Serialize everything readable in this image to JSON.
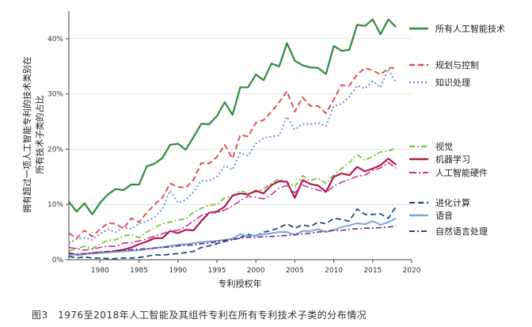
{
  "caption": "图3　1976至2018年人工智能及其组件专利在所有专利技术子类的分布情况",
  "chart_data": {
    "type": "line",
    "title": "",
    "xlabel": "专利授权年",
    "ylabel_lines": [
      "拥有超过一项人工智能专利的技术类别在",
      "所有技术子类的占比"
    ],
    "xlim": [
      1976,
      2020
    ],
    "ylim": [
      0,
      45
    ],
    "x_ticks": [
      1980,
      1985,
      1990,
      1995,
      2000,
      2005,
      2010,
      2015,
      2020
    ],
    "x_tick_labels": [
      "1980",
      "1985",
      "1990",
      "1995",
      "2000",
      "2005",
      "2010",
      "2015",
      "2020"
    ],
    "y_ticks": [
      0,
      10,
      20,
      30,
      40
    ],
    "y_tick_labels": [
      "0%",
      "10%",
      "20%",
      "30%",
      "40%"
    ],
    "legend_position": "right",
    "x": [
      1976,
      1977,
      1978,
      1979,
      1980,
      1981,
      1982,
      1983,
      1984,
      1985,
      1986,
      1987,
      1988,
      1989,
      1990,
      1991,
      1992,
      1993,
      1994,
      1995,
      1996,
      1997,
      1998,
      1999,
      2000,
      2001,
      2002,
      2003,
      2004,
      2005,
      2006,
      2007,
      2008,
      2009,
      2010,
      2011,
      2012,
      2013,
      2014,
      2015,
      2016,
      2017,
      2018
    ],
    "series": [
      {
        "name": "所有人工智能技术",
        "color": "#2e8b3e",
        "dash": "solid",
        "width": 2.2,
        "values": [
          10.5,
          8.7,
          10.2,
          8.2,
          10.3,
          11.8,
          12.8,
          12.6,
          13.6,
          13.6,
          16.9,
          17.4,
          18.4,
          20.8,
          21.0,
          19.9,
          22.2,
          24.6,
          24.5,
          26.0,
          28.5,
          26.2,
          31.2,
          31.2,
          33.5,
          32.5,
          35.5,
          35.0,
          39.2,
          36.0,
          35.2,
          34.8,
          34.7,
          33.6,
          38.7,
          37.8,
          38.0,
          42.5,
          42.3,
          43.5,
          40.8,
          43.5,
          42.1
        ]
      },
      {
        "name": "规划与控制",
        "color": "#e05050",
        "dash": "7,4",
        "width": 2.0,
        "values": [
          4.8,
          3.9,
          5.3,
          4.2,
          5.5,
          6.6,
          6.5,
          5.6,
          7.5,
          6.8,
          8.5,
          10.0,
          11.2,
          13.8,
          13.2,
          13.0,
          14.5,
          17.5,
          17.4,
          18.6,
          20.8,
          18.3,
          22.6,
          22.3,
          24.8,
          25.3,
          26.8,
          28.5,
          30.5,
          26.8,
          29.4,
          27.8,
          27.8,
          26.5,
          29.0,
          31.6,
          31.5,
          33.5,
          34.7,
          34.3,
          33.5,
          34.7,
          34.7
        ]
      },
      {
        "name": "知识处理",
        "color": "#6a8fd6",
        "dash": "2,3",
        "width": 2.0,
        "values": [
          3.0,
          3.8,
          4.0,
          3.6,
          4.7,
          5.5,
          5.0,
          5.8,
          5.6,
          6.5,
          7.0,
          7.7,
          9.2,
          12.5,
          10.3,
          10.8,
          12.3,
          14.3,
          14.3,
          15.0,
          17.0,
          16.3,
          19.3,
          18.8,
          21.0,
          22.0,
          22.3,
          22.5,
          25.9,
          23.5,
          24.6,
          24.5,
          24.8,
          24.2,
          27.8,
          28.2,
          29.5,
          31.5,
          31.0,
          32.3,
          31.2,
          34.5,
          32.0
        ]
      },
      {
        "name": "视觉",
        "color": "#7ac23a",
        "dash": "7,3,2,3",
        "width": 1.8,
        "values": [
          1.5,
          2.0,
          2.4,
          2.0,
          2.8,
          3.5,
          3.6,
          4.2,
          4.6,
          4.0,
          5.0,
          5.8,
          6.5,
          6.8,
          7.2,
          7.4,
          8.6,
          9.3,
          9.9,
          10.0,
          11.2,
          11.5,
          12.5,
          12.0,
          12.3,
          12.8,
          13.8,
          14.6,
          14.0,
          13.2,
          15.2,
          14.3,
          14.8,
          13.8,
          15.3,
          16.5,
          17.6,
          19.0,
          18.0,
          18.7,
          19.5,
          19.7,
          20.2
        ]
      },
      {
        "name": "机器学习",
        "color": "#b5174a",
        "dash": "solid",
        "width": 2.2,
        "values": [
          1.0,
          0.9,
          1.0,
          1.2,
          1.3,
          1.3,
          1.6,
          1.8,
          2.2,
          2.8,
          3.3,
          3.9,
          3.9,
          5.2,
          4.8,
          5.4,
          5.3,
          7.0,
          8.5,
          8.7,
          9.6,
          11.6,
          12.0,
          11.8,
          12.5,
          12.0,
          13.5,
          14.2,
          14.1,
          11.2,
          14.4,
          13.7,
          13.4,
          12.3,
          15.0,
          15.6,
          15.3,
          16.8,
          16.0,
          16.5,
          17.1,
          18.3,
          17.2
        ]
      },
      {
        "name": "人工智能硬件",
        "color": "#c0389a",
        "dash": "9,3,2,3",
        "width": 1.6,
        "values": [
          2.2,
          2.0,
          1.7,
          1.9,
          2.2,
          2.5,
          2.4,
          3.0,
          3.1,
          3.4,
          3.8,
          4.3,
          4.7,
          5.2,
          5.3,
          6.0,
          7.0,
          8.0,
          8.5,
          8.5,
          9.0,
          9.7,
          10.7,
          11.5,
          11.3,
          11.0,
          11.8,
          13.0,
          13.4,
          12.1,
          13.5,
          13.0,
          12.6,
          12.2,
          13.3,
          14.0,
          14.5,
          15.1,
          15.3,
          16.2,
          16.6,
          17.6,
          16.6
        ]
      },
      {
        "name": "进化计算",
        "color": "#1f4e79",
        "dash": "7,4",
        "width": 1.8,
        "values": [
          0.6,
          0.3,
          0.5,
          0.3,
          0.3,
          0.2,
          0.2,
          0.3,
          0.3,
          0.4,
          0.6,
          0.9,
          0.8,
          1.0,
          1.1,
          1.3,
          1.5,
          2.2,
          2.5,
          2.9,
          3.3,
          3.7,
          4.0,
          4.6,
          4.2,
          5.0,
          5.3,
          5.8,
          6.5,
          5.7,
          6.3,
          6.0,
          6.8,
          6.5,
          7.5,
          7.3,
          7.0,
          9.2,
          8.2,
          8.2,
          8.3,
          7.5,
          9.6
        ]
      },
      {
        "name": "语音",
        "color": "#7aa7d6",
        "dash": "solid",
        "width": 2.0,
        "values": [
          0.8,
          1.0,
          1.0,
          1.1,
          1.2,
          1.3,
          1.4,
          1.5,
          1.6,
          1.7,
          1.9,
          2.1,
          2.3,
          2.5,
          2.7,
          2.8,
          3.0,
          3.2,
          3.3,
          3.4,
          3.6,
          3.8,
          4.6,
          4.3,
          4.4,
          4.6,
          4.8,
          5.0,
          5.0,
          4.5,
          5.2,
          5.2,
          5.5,
          5.0,
          5.4,
          5.9,
          6.2,
          6.6,
          6.4,
          7.0,
          6.3,
          6.8,
          7.5
        ]
      },
      {
        "name": "自然语言处理",
        "color": "#6b2a8a",
        "dash": "7,3,2,3",
        "width": 1.6,
        "values": [
          1.2,
          1.0,
          1.1,
          1.2,
          1.4,
          1.5,
          1.6,
          1.7,
          1.8,
          1.9,
          2.0,
          2.1,
          2.2,
          2.3,
          2.5,
          2.6,
          2.7,
          2.9,
          3.0,
          3.3,
          3.5,
          3.6,
          3.9,
          4.1,
          4.0,
          4.2,
          4.2,
          4.3,
          4.4,
          4.5,
          4.7,
          4.8,
          5.0,
          5.1,
          5.3,
          5.3,
          5.5,
          5.6,
          5.7,
          5.7,
          5.8,
          5.9,
          6.1
        ]
      }
    ]
  }
}
